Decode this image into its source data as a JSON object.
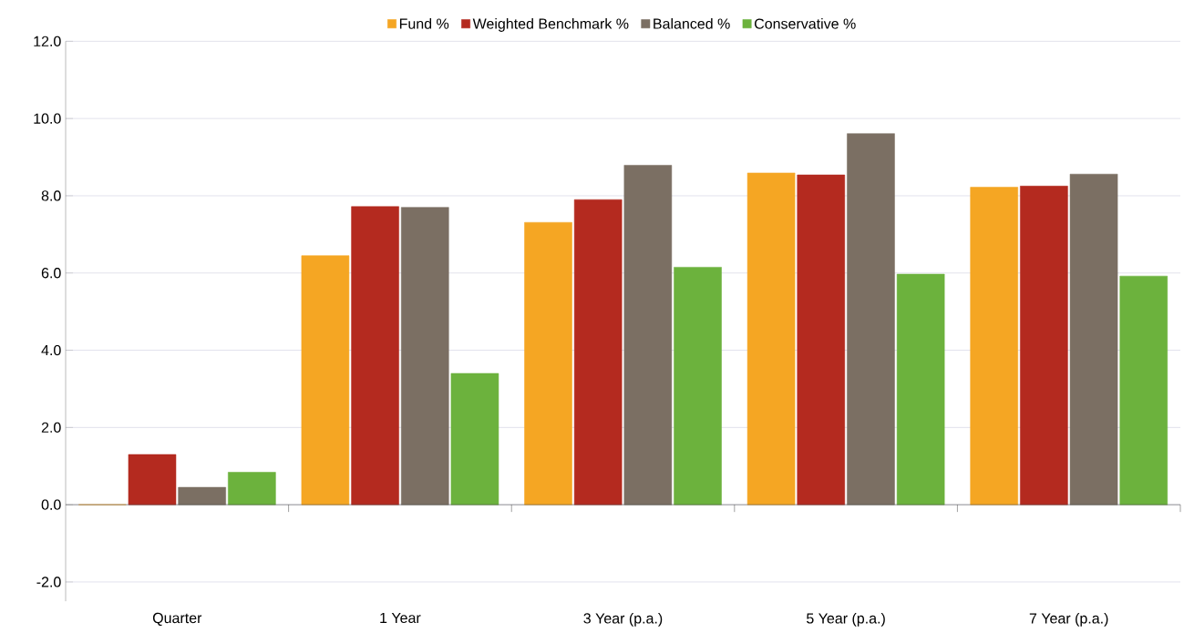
{
  "chart_data": {
    "type": "bar",
    "categories": [
      "Quarter",
      "1 Year",
      "3 Year (p.a.)",
      "5 Year (p.a.)",
      "7 Year (p.a.)"
    ],
    "series": [
      {
        "name": "Fund %",
        "color": "#f5a623",
        "values": [
          0.0,
          6.45,
          7.31,
          8.59,
          8.22
        ]
      },
      {
        "name": "Weighted Benchmark %",
        "color": "#b42a1f",
        "values": [
          1.3,
          7.72,
          7.9,
          8.54,
          8.25
        ]
      },
      {
        "name": "Balanced %",
        "color": "#7b6f63",
        "values": [
          0.45,
          7.7,
          8.79,
          9.61,
          8.56
        ]
      },
      {
        "name": "Conservative %",
        "color": "#6cb23d",
        "values": [
          0.84,
          3.4,
          6.15,
          5.97,
          5.92
        ]
      }
    ],
    "ylim": [
      -2.5,
      12
    ],
    "yticks": [
      {
        "value": -2,
        "label": "-2.0"
      },
      {
        "value": 0,
        "label": "0.0"
      },
      {
        "value": 2,
        "label": "2.0"
      },
      {
        "value": 4,
        "label": "4.0"
      },
      {
        "value": 6,
        "label": "6.0"
      },
      {
        "value": 8,
        "label": "8.0"
      },
      {
        "value": 10,
        "label": "10.0"
      },
      {
        "value": 12,
        "label": "12.0"
      }
    ],
    "grid": "y",
    "legend": "top"
  }
}
